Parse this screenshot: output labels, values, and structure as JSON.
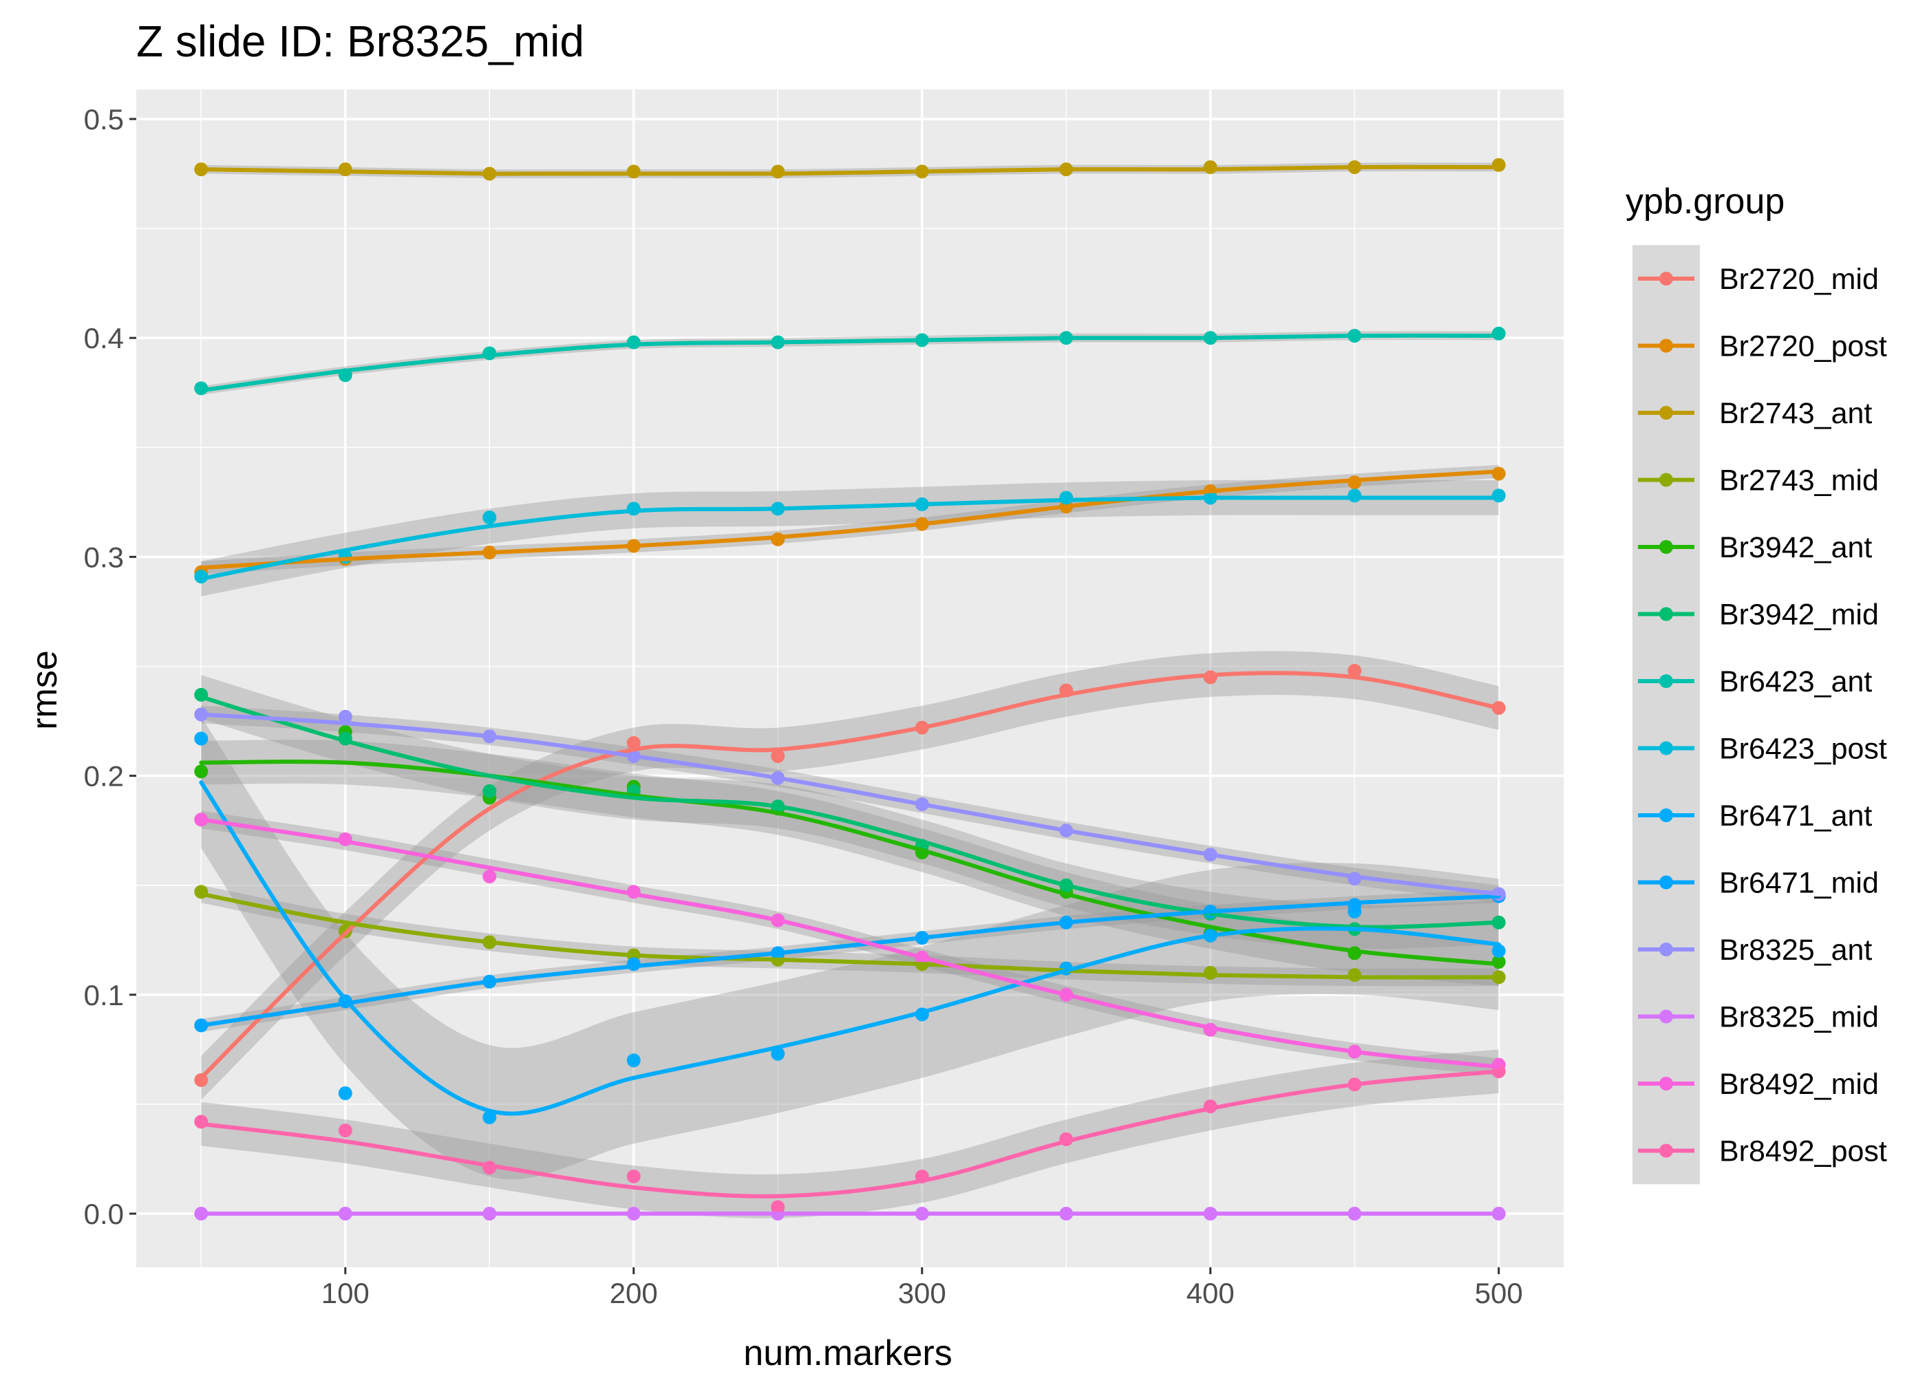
{
  "chart_data": {
    "type": "line",
    "title": "Z slide ID: Br8325_mid",
    "xlabel": "num.markers",
    "ylabel": "rmse",
    "xlim": [
      27.5,
      522.5
    ],
    "ylim": [
      -0.0245,
      0.5135
    ],
    "x_ticks": [
      100,
      200,
      300,
      400,
      500
    ],
    "x_tick_labels": [
      "100",
      "200",
      "300",
      "400",
      "500"
    ],
    "y_ticks": [
      0.0,
      0.1,
      0.2,
      0.3,
      0.4,
      0.5
    ],
    "y_tick_labels": [
      "0.0",
      "0.1",
      "0.2",
      "0.3",
      "0.4",
      "0.5"
    ],
    "legend_title": "ypb.group",
    "legend_position": "right",
    "grid": true,
    "background": "#ebebeb",
    "x": [
      50,
      100,
      150,
      200,
      250,
      300,
      350,
      400,
      450,
      500
    ],
    "series": [
      {
        "name": "Br2720_mid",
        "color": "#F8766D",
        "values": [
          0.061,
          0.129,
          0.19,
          0.215,
          0.209,
          0.222,
          0.239,
          0.245,
          0.248,
          0.231
        ],
        "smooth": [
          0.062,
          0.128,
          0.185,
          0.212,
          0.212,
          0.222,
          0.237,
          0.246,
          0.245,
          0.231
        ],
        "band": 0.01
      },
      {
        "name": "Br2720_post",
        "color": "#E18A00",
        "values": [
          0.293,
          0.299,
          0.302,
          0.305,
          0.308,
          0.315,
          0.323,
          0.33,
          0.334,
          0.338
        ],
        "smooth": [
          0.295,
          0.299,
          0.302,
          0.305,
          0.309,
          0.315,
          0.323,
          0.33,
          0.335,
          0.339
        ],
        "band": 0.003
      },
      {
        "name": "Br2743_ant",
        "color": "#BE9C00",
        "values": [
          0.477,
          0.477,
          0.475,
          0.476,
          0.476,
          0.476,
          0.477,
          0.478,
          0.478,
          0.479
        ],
        "smooth": [
          0.477,
          0.476,
          0.475,
          0.475,
          0.475,
          0.476,
          0.477,
          0.477,
          0.478,
          0.478
        ],
        "band": 0.002
      },
      {
        "name": "Br2743_mid",
        "color": "#8CAB00",
        "values": [
          0.147,
          0.129,
          0.124,
          0.118,
          0.116,
          0.114,
          0.112,
          0.11,
          0.109,
          0.108
        ],
        "smooth": [
          0.146,
          0.133,
          0.124,
          0.118,
          0.116,
          0.114,
          0.111,
          0.109,
          0.108,
          0.108
        ],
        "band": 0.004
      },
      {
        "name": "Br3942_ant",
        "color": "#24B700",
        "values": [
          0.202,
          0.22,
          0.19,
          0.195,
          0.185,
          0.165,
          0.147,
          0.128,
          0.119,
          0.115
        ],
        "smooth": [
          0.206,
          0.206,
          0.2,
          0.191,
          0.183,
          0.166,
          0.146,
          0.131,
          0.12,
          0.114
        ],
        "band": 0.01
      },
      {
        "name": "Br3942_mid",
        "color": "#00BE70",
        "values": [
          0.237,
          0.217,
          0.193,
          0.193,
          0.186,
          0.168,
          0.15,
          0.137,
          0.13,
          0.133
        ],
        "smooth": [
          0.236,
          0.216,
          0.2,
          0.19,
          0.186,
          0.17,
          0.15,
          0.137,
          0.131,
          0.133
        ],
        "band": 0.01
      },
      {
        "name": "Br6423_ant",
        "color": "#00C1AB",
        "values": [
          0.377,
          0.383,
          0.393,
          0.398,
          0.398,
          0.399,
          0.4,
          0.4,
          0.401,
          0.402
        ],
        "smooth": [
          0.376,
          0.385,
          0.392,
          0.397,
          0.398,
          0.399,
          0.4,
          0.4,
          0.401,
          0.401
        ],
        "band": 0.002
      },
      {
        "name": "Br6423_post",
        "color": "#00BBDA",
        "values": [
          0.291,
          0.3,
          0.318,
          0.322,
          0.322,
          0.324,
          0.327,
          0.327,
          0.328,
          0.328
        ],
        "smooth": [
          0.29,
          0.303,
          0.314,
          0.321,
          0.322,
          0.324,
          0.326,
          0.327,
          0.327,
          0.327
        ],
        "band": 0.008
      },
      {
        "name": "Br6471_ant",
        "color": "#00ACFC",
        "values": [
          0.217,
          0.055,
          0.044,
          0.07,
          0.073,
          0.091,
          0.112,
          0.127,
          0.138,
          0.12
        ],
        "smooth": [
          0.197,
          0.098,
          0.047,
          0.062,
          0.076,
          0.092,
          0.111,
          0.127,
          0.13,
          0.123
        ],
        "band": 0.03
      },
      {
        "name": "Br6471_mid",
        "color": "#00A6FF",
        "values": [
          0.086,
          0.097,
          0.106,
          0.114,
          0.119,
          0.126,
          0.133,
          0.138,
          0.141,
          0.145
        ],
        "smooth": [
          0.086,
          0.096,
          0.106,
          0.113,
          0.119,
          0.126,
          0.133,
          0.138,
          0.142,
          0.145
        ],
        "band": 0.003
      },
      {
        "name": "Br8325_ant",
        "color": "#9590FF",
        "values": [
          0.228,
          0.227,
          0.218,
          0.209,
          0.199,
          0.187,
          0.175,
          0.164,
          0.153,
          0.146
        ],
        "smooth": [
          0.228,
          0.224,
          0.218,
          0.209,
          0.199,
          0.187,
          0.175,
          0.164,
          0.154,
          0.146
        ],
        "band": 0.004
      },
      {
        "name": "Br8325_mid",
        "color": "#D575FE",
        "values": [
          0.0,
          0.0,
          0.0,
          0.0,
          0.0,
          0.0,
          0.0,
          0.0,
          0.0,
          0.0
        ],
        "smooth": [
          0.0,
          0.0,
          0.0,
          0.0,
          0.0,
          0.0,
          0.0,
          0.0,
          0.0,
          0.0
        ],
        "band": 0.0
      },
      {
        "name": "Br8492_mid",
        "color": "#F962DD",
        "values": [
          0.18,
          0.171,
          0.154,
          0.147,
          0.134,
          0.117,
          0.1,
          0.084,
          0.074,
          0.068
        ],
        "smooth": [
          0.18,
          0.17,
          0.158,
          0.146,
          0.134,
          0.117,
          0.1,
          0.085,
          0.074,
          0.067
        ],
        "band": 0.004
      },
      {
        "name": "Br8492_post",
        "color": "#FF65AC",
        "values": [
          0.042,
          0.038,
          0.021,
          0.017,
          0.003,
          0.017,
          0.034,
          0.049,
          0.059,
          0.065
        ],
        "smooth": [
          0.041,
          0.033,
          0.022,
          0.012,
          0.008,
          0.015,
          0.033,
          0.048,
          0.059,
          0.065
        ],
        "band": 0.01
      }
    ]
  }
}
